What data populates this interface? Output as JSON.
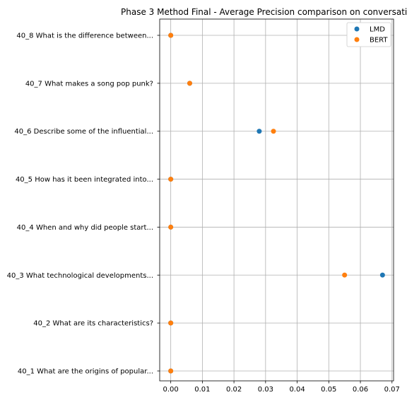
{
  "chart_data": {
    "type": "scatter",
    "title": "Phase 3 Method Final - Average Precision comparison on conversati",
    "xlabel": "",
    "ylabel": "",
    "xlim": [
      -0.0035,
      0.0705
    ],
    "x_ticks": [
      "0.00",
      "0.01",
      "0.02",
      "0.03",
      "0.04",
      "0.05",
      "0.06",
      "0.07"
    ],
    "x_tick_values": [
      0.0,
      0.01,
      0.02,
      0.03,
      0.04,
      0.05,
      0.06,
      0.07
    ],
    "categories": [
      "40_8 What is the difference between...",
      "40_7 What makes a song pop punk?",
      "40_6 Describe some of the influential...",
      "40_5 How has it been integrated into...",
      "40_4 When and why did people start...",
      "40_3 What technological developments...",
      "40_2 What are its characteristics?",
      "40_1 What are the origins of popular..."
    ],
    "series": [
      {
        "name": "LMD",
        "color": "#1f77b4",
        "values": [
          0.0,
          0.006,
          0.028,
          0.0,
          0.0,
          0.067,
          0.0,
          0.0
        ]
      },
      {
        "name": "BERT",
        "color": "#ff7f0e",
        "values": [
          0.0,
          0.006,
          0.0325,
          0.0,
          0.0,
          0.055,
          0.0,
          0.0
        ]
      }
    ],
    "grid": true,
    "legend_position": "top-right"
  }
}
